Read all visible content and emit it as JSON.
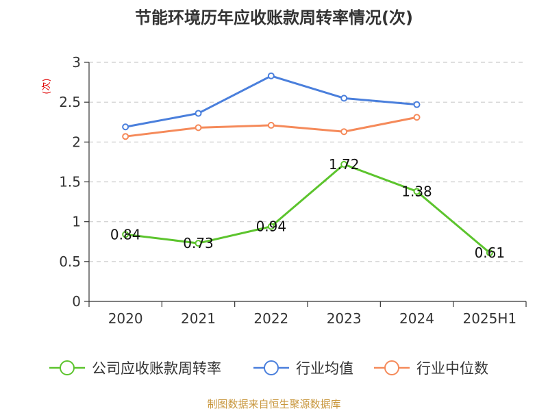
{
  "chart_data": {
    "type": "line",
    "title": "节能环境历年应收账款周转率情况(次)",
    "ylabel": "(次)",
    "xlabel": "",
    "categories": [
      "2020",
      "2021",
      "2022",
      "2023",
      "2024",
      "2025H1"
    ],
    "ylim": [
      0,
      3
    ],
    "yticks": [
      "0",
      "0.5",
      "1",
      "1.5",
      "2",
      "2.5",
      "3"
    ],
    "grid": true,
    "legend_position": "bottom",
    "series": [
      {
        "name": "公司应收账款周转率",
        "color": "#5cc42d",
        "values": [
          0.84,
          0.73,
          0.94,
          1.72,
          1.38,
          0.61
        ],
        "labels": [
          "0.84",
          "0.73",
          "0.94",
          "1.72",
          "1.38",
          "0.61"
        ]
      },
      {
        "name": "行业均值",
        "color": "#4a7fdc",
        "values": [
          2.19,
          2.36,
          2.83,
          2.55,
          2.47,
          null
        ]
      },
      {
        "name": "行业中位数",
        "color": "#f58a5a",
        "values": [
          2.07,
          2.18,
          2.21,
          2.13,
          2.31,
          null
        ]
      }
    ],
    "source": "制图数据来自恒生聚源数据库"
  }
}
